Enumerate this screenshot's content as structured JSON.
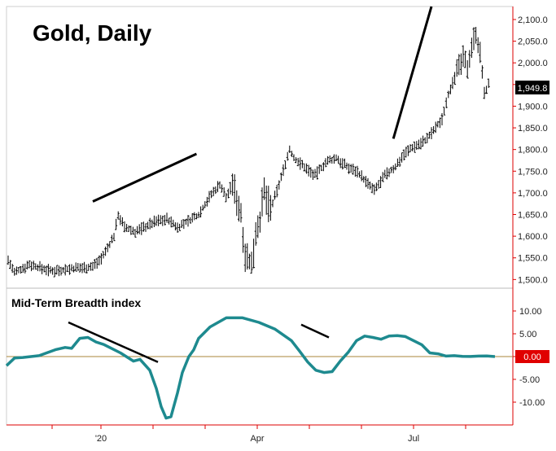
{
  "chart_data": [
    {
      "type": "ohlc",
      "title": "Gold, Daily",
      "ylim": [
        1480,
        2130
      ],
      "yticks": [
        "2,100.0",
        "2,050.0",
        "2,000.0",
        "1,950.0",
        "1,900.0",
        "1,850.0",
        "1,800.0",
        "1,750.0",
        "1,700.0",
        "1,650.0",
        "1,600.0",
        "1,550.0",
        "1,500.0"
      ],
      "ytick_values": [
        2100,
        2050,
        2000,
        1950,
        1900,
        1850,
        1800,
        1750,
        1700,
        1650,
        1600,
        1550,
        1500
      ],
      "last_value_label": "1,949.8",
      "last_value": 1949.8,
      "bar_count": 200,
      "anchors": [
        [
          0,
          1545
        ],
        [
          3,
          1515
        ],
        [
          10,
          1535
        ],
        [
          20,
          1520
        ],
        [
          30,
          1525
        ],
        [
          40,
          1530
        ],
        [
          45,
          1555
        ],
        [
          50,
          1600
        ],
        [
          52,
          1650
        ],
        [
          55,
          1620
        ],
        [
          60,
          1610
        ],
        [
          70,
          1635
        ],
        [
          75,
          1640
        ],
        [
          80,
          1620
        ],
        [
          90,
          1650
        ],
        [
          95,
          1690
        ],
        [
          100,
          1720
        ],
        [
          103,
          1690
        ],
        [
          106,
          1720
        ],
        [
          110,
          1650
        ],
        [
          112,
          1560
        ],
        [
          115,
          1530
        ],
        [
          117,
          1610
        ],
        [
          119,
          1640
        ],
        [
          121,
          1700
        ],
        [
          124,
          1660
        ],
        [
          128,
          1720
        ],
        [
          133,
          1800
        ],
        [
          135,
          1780
        ],
        [
          140,
          1760
        ],
        [
          145,
          1740
        ],
        [
          150,
          1770
        ],
        [
          155,
          1780
        ],
        [
          160,
          1760
        ],
        [
          165,
          1750
        ],
        [
          170,
          1720
        ],
        [
          173,
          1705
        ],
        [
          178,
          1740
        ],
        [
          183,
          1760
        ],
        [
          187,
          1790
        ],
        [
          191,
          1805
        ],
        [
          195,
          1815
        ],
        [
          198,
          1825
        ],
        [
          202,
          1850
        ],
        [
          205,
          1870
        ],
        [
          208,
          1930
        ],
        [
          212,
          1980
        ],
        [
          215,
          2010
        ],
        [
          217,
          1990
        ],
        [
          219,
          2040
        ],
        [
          221,
          2070
        ],
        [
          223,
          2020
        ],
        [
          225,
          1930
        ],
        [
          227,
          1950
        ]
      ],
      "trendlines_price": [
        [
          40,
          1680,
          89,
          1790
        ],
        [
          182,
          1825,
          200,
          2130
        ]
      ]
    },
    {
      "type": "line",
      "title": "Mid-Term Breadth index",
      "ylim": [
        -15,
        15
      ],
      "yticks": [
        "10.00",
        "5.00",
        "0.00",
        "-5.00",
        "-10.00"
      ],
      "ytick_values": [
        10,
        5,
        0,
        -5,
        -10
      ],
      "last_value_label": "0.00",
      "last_value": 0.0,
      "zero_line": true,
      "series": [
        {
          "x": [
            0,
            5,
            10,
            20,
            30,
            36,
            40,
            45,
            50,
            55,
            60,
            70,
            78,
            82,
            88,
            92,
            95,
            98,
            101,
            105,
            108,
            112,
            115,
            118,
            125,
            135,
            145,
            155,
            165,
            175,
            180,
            185,
            190,
            195,
            200,
            205,
            210,
            215,
            220,
            225,
            230,
            235,
            240,
            245,
            250,
            255,
            260,
            265,
            270,
            275,
            280,
            285,
            290,
            295,
            300
          ],
          "y": [
            -2,
            -0.3,
            -0.2,
            0.2,
            1.5,
            2,
            1.8,
            4,
            4.2,
            3.2,
            2.6,
            0.8,
            -1.0,
            -0.6,
            -3,
            -7,
            -11,
            -13.5,
            -13.2,
            -8,
            -3.5,
            0,
            1.5,
            4,
            6.5,
            8.5,
            8.5,
            7.5,
            6,
            3.5,
            1.2,
            -1.2,
            -3,
            -3.5,
            -3.3,
            -1,
            1,
            3.5,
            4.5,
            4.2,
            3.8,
            4.5,
            4.6,
            4.4,
            3.5,
            2.6,
            0.8,
            0.6,
            0.1,
            0.2,
            0.05,
            0.02,
            0.1,
            0.15,
            0
          ]
        }
      ],
      "trendlines": [
        [
          38,
          7.5,
          93,
          -1.2
        ],
        [
          181,
          7,
          198,
          4.2
        ]
      ]
    }
  ],
  "xaxis": {
    "labels": [
      "'20",
      "Apr",
      "Jul"
    ]
  }
}
